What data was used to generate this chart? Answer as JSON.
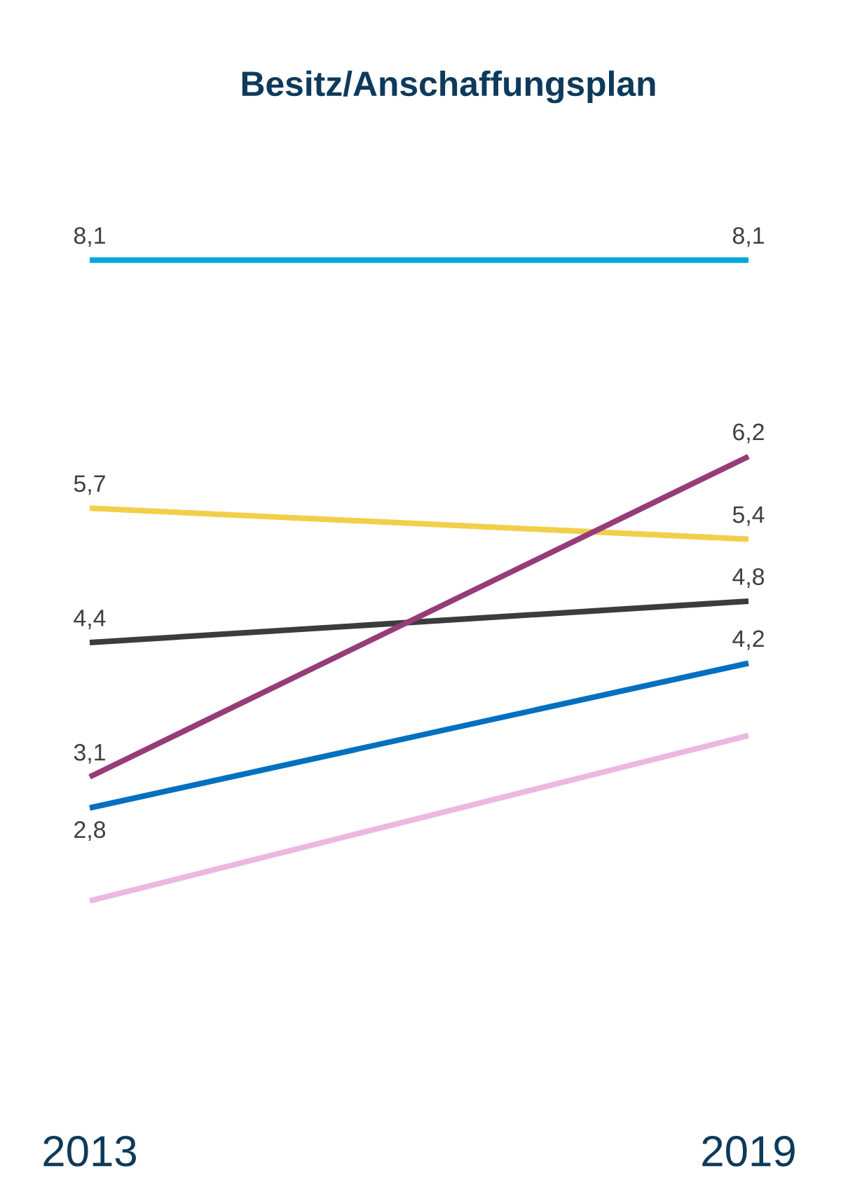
{
  "chart_data": {
    "type": "line",
    "title": "Besitz/Anschaffungsplan",
    "categories": [
      "2013",
      "2019"
    ],
    "series": [
      {
        "color": "#00a9d8",
        "values": [
          8.1,
          8.1
        ],
        "value_labels": [
          "8,1",
          "8,1"
        ]
      },
      {
        "color": "#f2cf4a",
        "values": [
          5.7,
          5.4
        ],
        "value_labels": [
          "5,7",
          "5,4"
        ]
      },
      {
        "color": "#3c3c3c",
        "values": [
          4.4,
          4.8
        ],
        "value_labels": [
          "4,4",
          "4,8"
        ]
      },
      {
        "color": "#963c78",
        "values": [
          3.1,
          6.2
        ],
        "value_labels": [
          "3,1",
          "6,2"
        ]
      },
      {
        "color": "#0070c0",
        "values": [
          2.8,
          4.2
        ],
        "value_labels": [
          "2,8",
          "4,2"
        ]
      },
      {
        "color": "#ebb8e0",
        "values": [
          1.9,
          3.5
        ],
        "value_labels": [
          null,
          null
        ]
      }
    ]
  }
}
